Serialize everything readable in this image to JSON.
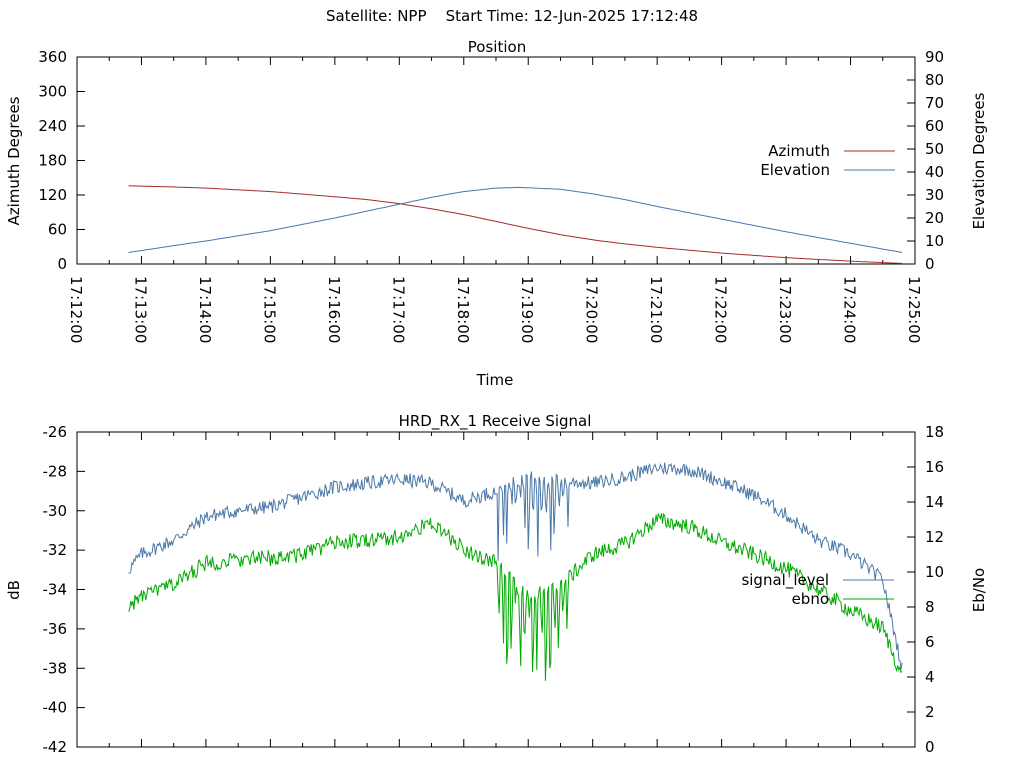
{
  "page": {
    "title": "Satellite: NPP    Start Time: 12-Jun-2025 17:12:48"
  },
  "colors": {
    "azimuth": "#a52a2a",
    "elevation": "#4a78a8",
    "signal_level": "#4a78a8",
    "ebno": "#00aa00",
    "axis": "#000000"
  },
  "chart_data": [
    {
      "type": "line",
      "title": "Position",
      "xlabel": "Time",
      "ylabel": "Azimuth Degrees",
      "y2label": "Elevation Degrees",
      "xlim": [
        "17:12:00",
        "17:25:00"
      ],
      "ylim": [
        0,
        360
      ],
      "y2lim": [
        0,
        90
      ],
      "x_tick_labels": [
        "17:12:00",
        "17:13:00",
        "17:14:00",
        "17:15:00",
        "17:16:00",
        "17:17:00",
        "17:18:00",
        "17:19:00",
        "17:20:00",
        "17:21:00",
        "17:22:00",
        "17:23:00",
        "17:24:00",
        "17:25:00"
      ],
      "y_tick_labels": [
        "0",
        "60",
        "120",
        "180",
        "240",
        "300",
        "360"
      ],
      "y2_tick_labels": [
        "0",
        "10",
        "20",
        "30",
        "40",
        "50",
        "60",
        "70",
        "80",
        "90"
      ],
      "legend_position": "right",
      "grid": false,
      "series": [
        {
          "name": "Azimuth",
          "axis": "y",
          "x": [
            "17:12:48",
            "17:13:30",
            "17:14:00",
            "17:15:00",
            "17:16:00",
            "17:16:30",
            "17:17:00",
            "17:17:30",
            "17:18:00",
            "17:18:30",
            "17:19:00",
            "17:19:30",
            "17:20:00",
            "17:20:30",
            "17:21:00",
            "17:22:00",
            "17:23:00",
            "17:24:00",
            "17:24:48"
          ],
          "values": [
            136,
            134,
            132,
            126,
            117,
            112,
            105,
            96,
            86,
            74,
            62,
            51,
            42,
            35,
            29,
            19,
            11,
            5,
            1
          ]
        },
        {
          "name": "Elevation",
          "axis": "y2",
          "x": [
            "17:12:48",
            "17:13:30",
            "17:14:00",
            "17:15:00",
            "17:16:00",
            "17:16:30",
            "17:17:00",
            "17:17:30",
            "17:18:00",
            "17:18:30",
            "17:18:52",
            "17:19:30",
            "17:20:00",
            "17:20:30",
            "17:21:00",
            "17:22:00",
            "17:23:00",
            "17:24:00",
            "17:24:48"
          ],
          "values": [
            5,
            8,
            10,
            14.5,
            20,
            23,
            26,
            29,
            31.5,
            33,
            33.3,
            32.5,
            30.5,
            28,
            25,
            19.5,
            14,
            9,
            5
          ]
        }
      ]
    },
    {
      "type": "line",
      "title": "HRD_RX_1 Receive Signal",
      "xlabel": "",
      "ylabel": "dB",
      "y2label": "Eb/No",
      "xlim": [
        "17:12:00",
        "17:25:00"
      ],
      "ylim": [
        -42,
        -26
      ],
      "y2lim": [
        0,
        18
      ],
      "y_tick_labels": [
        "-42",
        "-40",
        "-38",
        "-36",
        "-34",
        "-32",
        "-30",
        "-28",
        "-26"
      ],
      "y2_tick_labels": [
        "0",
        "2",
        "4",
        "6",
        "8",
        "10",
        "12",
        "14",
        "16",
        "18"
      ],
      "legend_position": "right",
      "grid": false,
      "series": [
        {
          "name": "signal_level",
          "axis": "y",
          "x": [
            "17:12:48",
            "17:13:00",
            "17:13:30",
            "17:14:00",
            "17:14:30",
            "17:15:00",
            "17:15:30",
            "17:16:00",
            "17:16:30",
            "17:17:00",
            "17:17:30",
            "17:18:00",
            "17:18:30",
            "17:19:00",
            "17:19:30",
            "17:20:00",
            "17:20:30",
            "17:21:00",
            "17:21:30",
            "17:22:00",
            "17:22:30",
            "17:23:00",
            "17:23:30",
            "17:24:00",
            "17:24:30",
            "17:24:48"
          ],
          "values": [
            -33,
            -32.2,
            -31.5,
            -30.3,
            -30.0,
            -29.8,
            -29.3,
            -28.8,
            -28.6,
            -28.4,
            -28.6,
            -29.5,
            -29.0,
            -28.2,
            -28.5,
            -28.6,
            -28.3,
            -27.8,
            -27.9,
            -28.5,
            -29.2,
            -30.2,
            -31.5,
            -32.2,
            -33.5,
            -38
          ]
        },
        {
          "name": "ebno",
          "axis": "y2",
          "x": [
            "17:12:48",
            "17:13:00",
            "17:13:30",
            "17:14:00",
            "17:14:30",
            "17:15:00",
            "17:15:30",
            "17:16:00",
            "17:16:30",
            "17:17:00",
            "17:17:30",
            "17:18:00",
            "17:18:30",
            "17:19:00",
            "17:19:30",
            "17:20:00",
            "17:20:30",
            "17:21:00",
            "17:21:30",
            "17:22:00",
            "17:22:30",
            "17:23:00",
            "17:23:30",
            "17:24:00",
            "17:24:30",
            "17:24:48"
          ],
          "values": [
            8,
            8.6,
            9.3,
            10.5,
            10.7,
            10.8,
            11.0,
            11.7,
            11.8,
            12.0,
            12.8,
            11.3,
            10.5,
            8.5,
            9.2,
            11.0,
            11.6,
            13.0,
            12.6,
            11.7,
            11.0,
            10.2,
            9.0,
            7.8,
            6.8,
            4
          ]
        }
      ]
    }
  ]
}
